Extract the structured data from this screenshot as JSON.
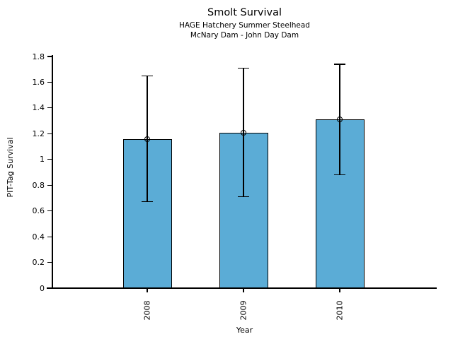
{
  "title": "Smolt Survival",
  "subtitle_line1": "HAGE Hatchery Summer Steelhead",
  "subtitle_line2": "McNary Dam - John Day Dam",
  "chart_data": {
    "type": "bar",
    "title": "Smolt Survival",
    "subtitles": [
      "HAGE Hatchery Summer Steelhead",
      "McNary Dam - John Day Dam"
    ],
    "categories": [
      "2008",
      "2009",
      "2010"
    ],
    "values": [
      1.16,
      1.21,
      1.31
    ],
    "error_low": [
      0.67,
      0.71,
      0.88
    ],
    "error_high": [
      1.65,
      1.71,
      1.74
    ],
    "xlabel": "Year",
    "ylabel": "PIT-Tag Survival",
    "ylim": [
      0,
      1.8
    ],
    "yticks": [
      0,
      0.2,
      0.4,
      0.6,
      0.8,
      1,
      1.2,
      1.4,
      1.6,
      1.8
    ],
    "ytick_labels": [
      "0",
      "0.2",
      "0.4",
      "0.6",
      "0.8",
      "1",
      "1.2",
      "1.4",
      "1.6",
      "1.8"
    ],
    "xtick_rotation": 90,
    "grid": false,
    "legend": "none",
    "bar_fill_color": "#5BACD6",
    "bar_edge_color": "#000000",
    "error_bar_color": "#000000",
    "marker": "open-circle",
    "background_color": "#ffffff"
  }
}
